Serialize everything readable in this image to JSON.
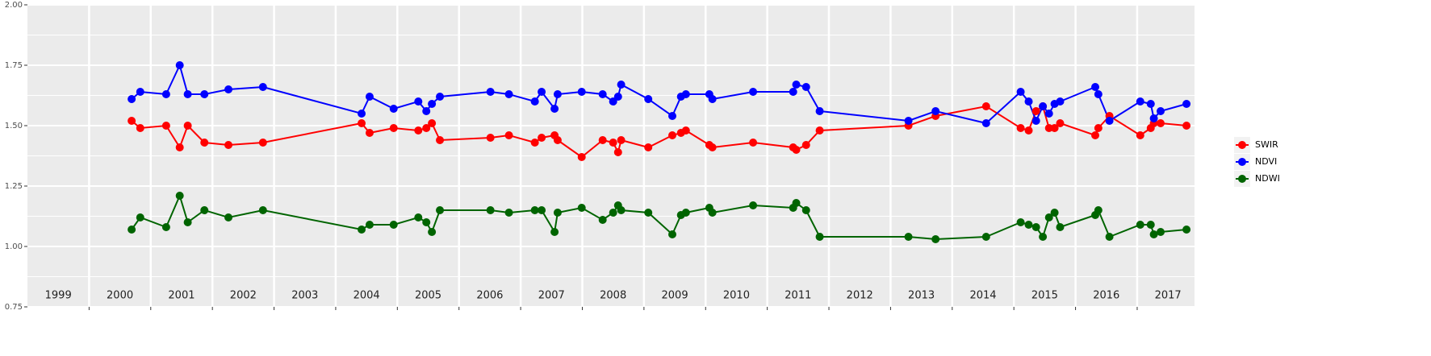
{
  "chart_data": {
    "type": "line",
    "x": [
      2000.69,
      2000.83,
      2001.25,
      2001.47,
      2001.6,
      2001.87,
      2002.26,
      2002.82,
      2004.42,
      2004.55,
      2004.94,
      2005.34,
      2005.47,
      2005.56,
      2005.69,
      2006.51,
      2006.81,
      2007.23,
      2007.34,
      2007.55,
      2007.6,
      2007.99,
      2008.33,
      2008.5,
      2008.58,
      2008.63,
      2009.07,
      2009.46,
      2009.6,
      2009.68,
      2010.06,
      2010.11,
      2010.77,
      2011.42,
      2011.47,
      2011.63,
      2011.85,
      2013.29,
      2013.73,
      2014.55,
      2015.11,
      2015.24,
      2015.36,
      2015.47,
      2015.57,
      2015.66,
      2015.75,
      2016.32,
      2016.37,
      2016.55,
      2017.05,
      2017.22,
      2017.27,
      2017.38,
      2017.8
    ],
    "series": [
      {
        "name": "SWIR",
        "color": "#ff0000",
        "values": [
          1.52,
          1.49,
          1.5,
          1.41,
          1.5,
          1.43,
          1.42,
          1.43,
          1.51,
          1.47,
          1.49,
          1.48,
          1.49,
          1.51,
          1.44,
          1.45,
          1.46,
          1.43,
          1.45,
          1.46,
          1.44,
          1.37,
          1.44,
          1.43,
          1.39,
          1.44,
          1.41,
          1.46,
          1.47,
          1.48,
          1.42,
          1.41,
          1.43,
          1.41,
          1.4,
          1.42,
          1.48,
          1.5,
          1.54,
          1.58,
          1.49,
          1.48,
          1.56,
          1.58,
          1.49,
          1.49,
          1.51,
          1.46,
          1.49,
          1.54,
          1.46,
          1.49,
          1.51,
          1.51,
          1.5
        ]
      },
      {
        "name": "NDVI",
        "color": "#0000ff",
        "values": [
          1.61,
          1.64,
          1.63,
          1.75,
          1.63,
          1.63,
          1.65,
          1.66,
          1.55,
          1.62,
          1.57,
          1.6,
          1.56,
          1.59,
          1.62,
          1.64,
          1.63,
          1.6,
          1.64,
          1.57,
          1.63,
          1.64,
          1.63,
          1.6,
          1.62,
          1.67,
          1.61,
          1.54,
          1.62,
          1.63,
          1.63,
          1.61,
          1.64,
          1.64,
          1.67,
          1.66,
          1.56,
          1.52,
          1.56,
          1.51,
          1.64,
          1.6,
          1.52,
          1.58,
          1.55,
          1.59,
          1.6,
          1.66,
          1.63,
          1.52,
          1.6,
          1.59,
          1.53,
          1.56,
          1.59
        ]
      },
      {
        "name": "NDWI",
        "color": "#006400",
        "values": [
          1.07,
          1.12,
          1.08,
          1.21,
          1.1,
          1.15,
          1.12,
          1.15,
          1.07,
          1.09,
          1.09,
          1.12,
          1.1,
          1.06,
          1.15,
          1.15,
          1.14,
          1.15,
          1.15,
          1.06,
          1.14,
          1.16,
          1.11,
          1.14,
          1.17,
          1.15,
          1.14,
          1.05,
          1.13,
          1.14,
          1.16,
          1.14,
          1.17,
          1.16,
          1.18,
          1.15,
          1.04,
          1.04,
          1.03,
          1.04,
          1.1,
          1.09,
          1.08,
          1.04,
          1.12,
          1.14,
          1.08,
          1.13,
          1.15,
          1.04,
          1.09,
          1.09,
          1.05,
          1.06,
          1.07
        ]
      }
    ],
    "xlim": [
      1999,
      2017.93
    ],
    "xticks": [
      2000,
      2001,
      2002,
      2003,
      2004,
      2005,
      2006,
      2007,
      2008,
      2009,
      2010,
      2011,
      2012,
      2013,
      2014,
      2015,
      2016,
      2017
    ],
    "year_labels": [
      {
        "value": 1999.5,
        "label": "1999"
      },
      {
        "value": 2000.5,
        "label": "2000"
      },
      {
        "value": 2001.5,
        "label": "2001"
      },
      {
        "value": 2002.5,
        "label": "2002"
      },
      {
        "value": 2003.5,
        "label": "2003"
      },
      {
        "value": 2004.5,
        "label": "2004"
      },
      {
        "value": 2005.5,
        "label": "2005"
      },
      {
        "value": 2006.5,
        "label": "2006"
      },
      {
        "value": 2007.5,
        "label": "2007"
      },
      {
        "value": 2008.5,
        "label": "2008"
      },
      {
        "value": 2009.5,
        "label": "2009"
      },
      {
        "value": 2010.5,
        "label": "2010"
      },
      {
        "value": 2011.5,
        "label": "2011"
      },
      {
        "value": 2012.5,
        "label": "2012"
      },
      {
        "value": 2013.5,
        "label": "2013"
      },
      {
        "value": 2014.5,
        "label": "2014"
      },
      {
        "value": 2015.5,
        "label": "2015"
      },
      {
        "value": 2016.5,
        "label": "2016"
      },
      {
        "value": 2017.5,
        "label": "2017"
      }
    ],
    "ylim": [
      0.75,
      2.0
    ],
    "yticks": [
      {
        "value": 0.75,
        "label": "0.75"
      },
      {
        "value": 1,
        "label": "1.00"
      },
      {
        "value": 1.25,
        "label": "1.25"
      },
      {
        "value": 1.5,
        "label": "1.50"
      },
      {
        "value": 1.75,
        "label": "1.75"
      },
      {
        "value": 2,
        "label": "2.00"
      }
    ],
    "grid": true,
    "legend": "right"
  }
}
